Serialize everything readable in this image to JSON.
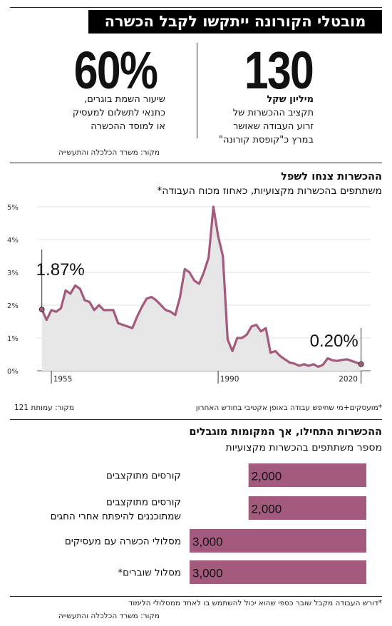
{
  "header": {
    "title": "מובטלי הקורונה ייתקשו לקבל הכשרה"
  },
  "stat_right": {
    "number": "130",
    "line1": "מיליון שקל",
    "line2": "תקציב ההכשרות של",
    "line3": "זרוע העבודה שאושר",
    "line4": "במרץ כ\"קופסת קורונה\""
  },
  "stat_left": {
    "number": "60%",
    "line1": "שיעור השמת בוגרים,",
    "line2": "כתנאי לתשלום למעסיק",
    "line3": "או למוסד ההכשרה"
  },
  "source_1": "מקור: משרד הכלכלה והתעשייה",
  "chart_data": [
    {
      "type": "area",
      "title": "ההכשרות צנחו לשפל",
      "subtitle": "משתתפים בהכשרות מקצועיות, כאחוז מכוח העבודה*",
      "x_ticks": [
        "1955",
        "1990",
        "2020"
      ],
      "y_ticks": [
        "0%",
        "1%",
        "2%",
        "3%",
        "4%",
        "5%"
      ],
      "ylim": [
        0,
        5
      ],
      "xlim": [
        1952,
        2022
      ],
      "annotations": [
        {
          "x": 1953,
          "y": 1.87,
          "label": "1.87%"
        },
        {
          "x": 2020,
          "y": 0.2,
          "label": "0.20%"
        }
      ],
      "x": [
        1953,
        1954,
        1955,
        1956,
        1957,
        1958,
        1959,
        1960,
        1961,
        1962,
        1963,
        1964,
        1965,
        1966,
        1967,
        1968,
        1969,
        1970,
        1971,
        1972,
        1973,
        1974,
        1975,
        1976,
        1977,
        1978,
        1979,
        1980,
        1981,
        1982,
        1983,
        1984,
        1985,
        1986,
        1987,
        1988,
        1989,
        1990,
        1991,
        1992,
        1993,
        1994,
        1995,
        1996,
        1997,
        1998,
        1999,
        2000,
        2001,
        2002,
        2003,
        2004,
        2005,
        2006,
        2007,
        2008,
        2009,
        2010,
        2011,
        2012,
        2013,
        2014,
        2015,
        2016,
        2017,
        2018,
        2019,
        2020
      ],
      "y": [
        1.87,
        1.55,
        1.85,
        1.8,
        1.9,
        2.45,
        2.35,
        2.6,
        2.5,
        2.15,
        2.1,
        1.85,
        2.0,
        1.85,
        1.85,
        1.85,
        1.45,
        1.4,
        1.35,
        1.3,
        1.65,
        1.95,
        2.2,
        2.25,
        2.15,
        2.0,
        1.85,
        1.8,
        1.7,
        2.25,
        3.1,
        3.0,
        2.75,
        2.65,
        3.0,
        3.45,
        5.0,
        4.1,
        3.5,
        0.95,
        0.6,
        1.0,
        1.0,
        1.1,
        1.35,
        1.4,
        1.2,
        1.3,
        0.55,
        0.6,
        0.45,
        0.35,
        0.25,
        0.22,
        0.15,
        0.2,
        0.15,
        0.2,
        0.12,
        0.18,
        0.38,
        0.32,
        0.3,
        0.33,
        0.35,
        0.3,
        0.25,
        0.2
      ]
    },
    {
      "type": "bar",
      "title": "ההכשרות התחילו, אך המקומות מוגבלים",
      "subtitle": "מספר משתתפים בהכשרות מקצועיות",
      "categories": [
        [
          "קורסים מתוקצבים"
        ],
        [
          "קורסים מתוקצבים",
          "שמתוכננים להיפתח אחרי החגים"
        ],
        [
          "מסלולי הכשרה עם מעסיקים"
        ],
        [
          "מסלול שוברים*"
        ]
      ],
      "values": [
        2000,
        2000,
        3000,
        3000
      ],
      "value_labels": [
        "2,000",
        "2,000",
        "3,000",
        "3,000"
      ],
      "xlim": [
        0,
        3000
      ]
    }
  ],
  "footnote_1": "*מועסקים+מי שחיפש עבודה באופן אקטיבי בחודש האחרון",
  "source_2": "מקור: עמותת 121",
  "footnote_2": "*דורש העבודה מקבל שובר כספי שהוא יכול להשתמש בו לאחד ממסלולי הלימוד",
  "source_3": "מקור: משרד הכלכלה והתעשייה",
  "colors": {
    "accent": "#a45a7d",
    "area_fill": "#e6e6e6",
    "title_bg": "#000000"
  }
}
